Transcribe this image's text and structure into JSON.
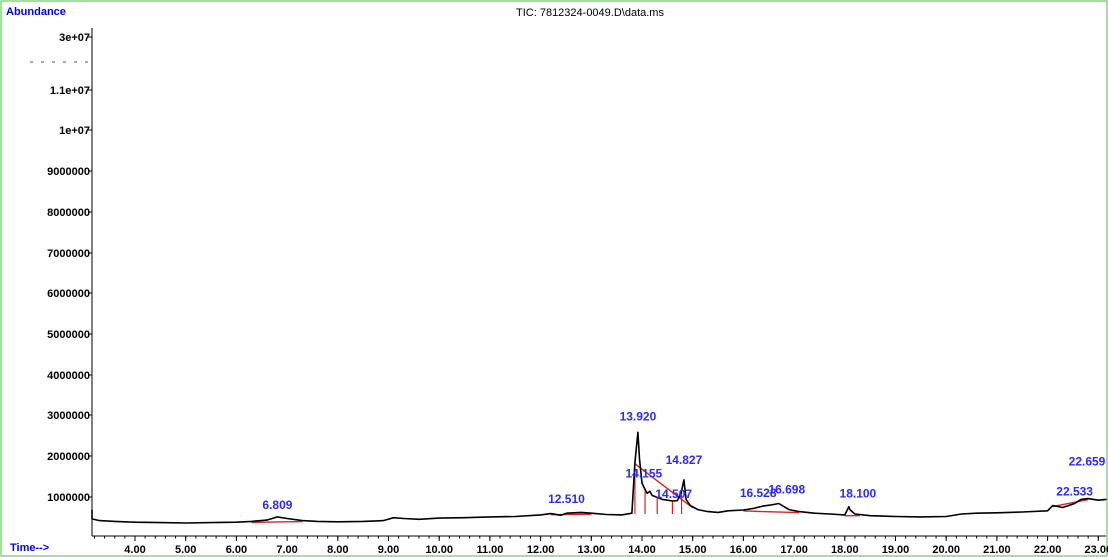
{
  "chart_data": {
    "type": "line",
    "title": "TIC: 7812324-0049.D\\data.ms",
    "xlabel": "Time-->",
    "ylabel": "Abundance",
    "xlim": [
      2.8,
      23.6
    ],
    "x_ticks": [
      "4.00",
      "5.00",
      "6.00",
      "7.00",
      "8.00",
      "9.00",
      "10.00",
      "11.00",
      "12.00",
      "13.00",
      "14.00",
      "15.00",
      "16.00",
      "17.00",
      "18.00",
      "19.00",
      "20.00",
      "21.00",
      "22.00",
      "23.00"
    ],
    "y_ticks": [
      "1000000",
      "2000000",
      "3000000",
      "4000000",
      "5000000",
      "6000000",
      "7000000",
      "8000000",
      "9000000",
      "1e+07",
      "1.1e+07",
      "3e+07"
    ],
    "series": [
      {
        "points": [
          [
            2.85,
            650000
          ],
          [
            2.95,
            500000
          ],
          [
            3.1,
            420000
          ],
          [
            3.3,
            380000
          ],
          [
            3.6,
            360000
          ],
          [
            4.0,
            340000
          ],
          [
            4.5,
            330000
          ],
          [
            5.0,
            320000
          ],
          [
            5.5,
            330000
          ],
          [
            6.0,
            340000
          ],
          [
            6.3,
            360000
          ],
          [
            6.6,
            390000
          ],
          [
            6.809,
            470000
          ],
          [
            7.0,
            430000
          ],
          [
            7.3,
            380000
          ],
          [
            7.6,
            360000
          ],
          [
            8.0,
            350000
          ],
          [
            8.5,
            360000
          ],
          [
            8.9,
            380000
          ],
          [
            9.1,
            450000
          ],
          [
            9.3,
            430000
          ],
          [
            9.6,
            410000
          ],
          [
            10.0,
            440000
          ],
          [
            10.5,
            450000
          ],
          [
            11.0,
            470000
          ],
          [
            11.5,
            480000
          ],
          [
            12.0,
            520000
          ],
          [
            12.2,
            550000
          ],
          [
            12.4,
            510000
          ],
          [
            12.51,
            560000
          ],
          [
            12.8,
            580000
          ],
          [
            13.0,
            560000
          ],
          [
            13.3,
            530000
          ],
          [
            13.6,
            520000
          ],
          [
            13.8,
            560000
          ],
          [
            13.86,
            1800000
          ],
          [
            13.9,
            2300000
          ],
          [
            13.92,
            2550000
          ],
          [
            13.95,
            1900000
          ],
          [
            14.0,
            1300000
          ],
          [
            14.06,
            1150000
          ],
          [
            14.1,
            1050000
          ],
          [
            14.155,
            1100000
          ],
          [
            14.2,
            1000000
          ],
          [
            14.3,
            950000
          ],
          [
            14.4,
            900000
          ],
          [
            14.507,
            880000
          ],
          [
            14.6,
            860000
          ],
          [
            14.7,
            870000
          ],
          [
            14.78,
            1100000
          ],
          [
            14.827,
            1380000
          ],
          [
            14.87,
            900000
          ],
          [
            14.95,
            750000
          ],
          [
            15.1,
            650000
          ],
          [
            15.3,
            600000
          ],
          [
            15.5,
            580000
          ],
          [
            15.7,
            620000
          ],
          [
            16.0,
            640000
          ],
          [
            16.2,
            680000
          ],
          [
            16.4,
            740000
          ],
          [
            16.528,
            760000
          ],
          [
            16.698,
            800000
          ],
          [
            16.9,
            650000
          ],
          [
            17.1,
            600000
          ],
          [
            17.4,
            560000
          ],
          [
            17.7,
            540000
          ],
          [
            18.0,
            520000
          ],
          [
            18.08,
            720000
          ],
          [
            18.1,
            650000
          ],
          [
            18.2,
            540000
          ],
          [
            18.5,
            500000
          ],
          [
            19.0,
            480000
          ],
          [
            19.5,
            470000
          ],
          [
            20.0,
            480000
          ],
          [
            20.3,
            540000
          ],
          [
            20.6,
            560000
          ],
          [
            21.0,
            570000
          ],
          [
            21.5,
            590000
          ],
          [
            22.0,
            620000
          ],
          [
            22.1,
            750000
          ],
          [
            22.3,
            700000
          ],
          [
            22.533,
            800000
          ],
          [
            22.659,
            900000
          ],
          [
            22.8,
            920000
          ],
          [
            23.0,
            880000
          ],
          [
            23.2,
            900000
          ],
          [
            23.5,
            890000
          ]
        ]
      }
    ],
    "peak_labels": [
      {
        "text": "6.809",
        "x": 6.809,
        "y": 470000
      },
      {
        "text": "12.510",
        "x": 12.51,
        "y": 560000
      },
      {
        "text": "13.920",
        "x": 13.92,
        "y": 2550000
      },
      {
        "text": "14.155",
        "x": 14.155,
        "y": 1100000
      },
      {
        "text": "14.507",
        "x": 14.507,
        "y": 880000
      },
      {
        "text": "14.827",
        "x": 14.827,
        "y": 1380000
      },
      {
        "text": "16.528",
        "x": 16.528,
        "y": 760000
      },
      {
        "text": "16.698",
        "x": 16.698,
        "y": 800000
      },
      {
        "text": "18.100",
        "x": 18.1,
        "y": 650000
      },
      {
        "text": "22.533",
        "x": 22.533,
        "y": 800000
      },
      {
        "text": "22.659",
        "x": 22.659,
        "y": 900000
      }
    ],
    "integration_baselines": [
      [
        6.3,
        7.3
      ],
      [
        12.2,
        13.0
      ],
      [
        13.86,
        15.0
      ],
      [
        16.0,
        17.1
      ],
      [
        18.0,
        18.3
      ],
      [
        22.1,
        22.8
      ]
    ],
    "integration_drops": [
      13.86,
      14.06,
      14.3,
      14.6,
      14.78
    ],
    "grid": false,
    "legend": false
  }
}
